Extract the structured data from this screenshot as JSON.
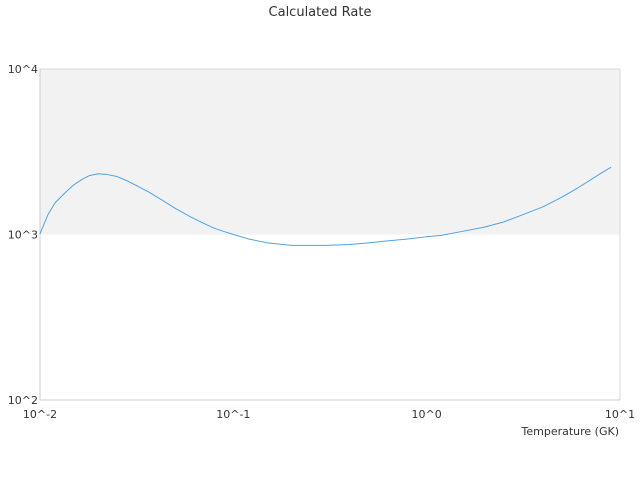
{
  "chart_data": {
    "type": "line",
    "title": "Calculated Rate",
    "xlabel": "Temperature (GK)",
    "ylabel": "",
    "xscale": "log",
    "yscale": "log",
    "xlim": [
      0.01,
      10
    ],
    "ylim": [
      100,
      10000
    ],
    "x_ticks": [
      {
        "value": 0.01,
        "label": "10^-2"
      },
      {
        "value": 0.1,
        "label": "10^-1"
      },
      {
        "value": 1,
        "label": "10^0"
      },
      {
        "value": 10,
        "label": "10^1"
      }
    ],
    "y_ticks": [
      {
        "value": 100,
        "label": "10^2"
      },
      {
        "value": 1000,
        "label": "10^3"
      },
      {
        "value": 10000,
        "label": "10^4"
      }
    ],
    "shaded_band": {
      "y_from": 1000,
      "y_to": 10000,
      "color": "#f2f2f2"
    },
    "grid": false,
    "legend": "none",
    "series": [
      {
        "color": "#4ea3e6",
        "x": [
          0.01,
          0.011,
          0.012,
          0.0135,
          0.015,
          0.0165,
          0.018,
          0.02,
          0.022,
          0.025,
          0.028,
          0.032,
          0.037,
          0.043,
          0.05,
          0.06,
          0.07,
          0.08,
          0.09,
          0.1,
          0.12,
          0.15,
          0.2,
          0.25,
          0.3,
          0.4,
          0.5,
          0.6,
          0.8,
          1.0,
          1.2,
          1.5,
          2.0,
          2.5,
          3.0,
          4.0,
          5.0,
          6.0,
          7.0,
          8.0,
          9.0
        ],
        "y": [
          1010,
          1320,
          1560,
          1790,
          2000,
          2150,
          2270,
          2330,
          2310,
          2240,
          2120,
          1960,
          1790,
          1610,
          1440,
          1280,
          1170,
          1090,
          1040,
          1000,
          940,
          890,
          860,
          860,
          860,
          870,
          890,
          910,
          940,
          970,
          990,
          1040,
          1110,
          1190,
          1290,
          1470,
          1680,
          1900,
          2130,
          2350,
          2550
        ]
      }
    ]
  }
}
